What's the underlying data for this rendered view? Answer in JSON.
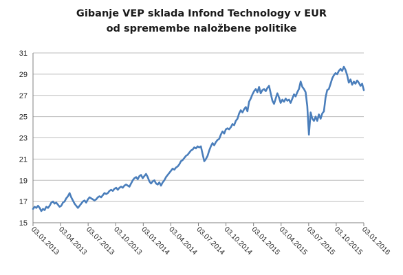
{
  "chart_data": {
    "type": "line",
    "title_lines": [
      "Gibanje VEP sklada Infond Technology v EUR",
      "od spremembe naložbene politike"
    ],
    "xlabel": "",
    "ylabel": "",
    "ylim": [
      15,
      31
    ],
    "y_ticks": [
      "15",
      "17",
      "19",
      "21",
      "23",
      "25",
      "27",
      "29",
      "31"
    ],
    "x_ticks": [
      "03.01.2013",
      "03.04.2013",
      "03.07.2013",
      "03.10.2013",
      "03.01.2014",
      "03.04.2014",
      "03.07.2014",
      "03.10.2014",
      "03.01.2015",
      "03.04.2015",
      "03.07.2015",
      "03.10.2015",
      "03.01.2016"
    ],
    "grid": true,
    "legend": "none",
    "line_color": "#4a7ebb",
    "series": [
      {
        "values": [
          16.3,
          16.5,
          16.4,
          16.6,
          16.4,
          16.1,
          16.3,
          16.2,
          16.5,
          16.4,
          16.6,
          16.9,
          17.0,
          16.8,
          16.9,
          16.7,
          16.5,
          16.6,
          16.9,
          17.0,
          17.3,
          17.5,
          17.8,
          17.4,
          17.1,
          16.8,
          16.6,
          16.4,
          16.6,
          16.8,
          17.0,
          17.1,
          16.9,
          17.2,
          17.4,
          17.3,
          17.2,
          17.1,
          17.2,
          17.4,
          17.5,
          17.4,
          17.6,
          17.8,
          17.7,
          17.8,
          18.0,
          18.1,
          18.0,
          18.2,
          18.3,
          18.1,
          18.3,
          18.4,
          18.3,
          18.5,
          18.6,
          18.5,
          18.4,
          18.7,
          19.0,
          19.2,
          19.3,
          19.1,
          19.4,
          19.5,
          19.2,
          19.4,
          19.6,
          19.3,
          18.9,
          18.7,
          18.9,
          19.0,
          18.7,
          18.6,
          18.8,
          18.5,
          18.8,
          19.0,
          19.3,
          19.5,
          19.7,
          19.9,
          20.1,
          20.0,
          20.2,
          20.3,
          20.5,
          20.8,
          20.9,
          21.1,
          21.3,
          21.4,
          21.6,
          21.8,
          21.9,
          22.1,
          22.0,
          22.2,
          22.1,
          22.2,
          21.5,
          20.8,
          21.0,
          21.3,
          21.8,
          22.2,
          22.5,
          22.3,
          22.6,
          22.8,
          22.9,
          23.3,
          23.6,
          23.4,
          23.8,
          23.9,
          23.8,
          24.0,
          24.3,
          24.2,
          24.6,
          24.8,
          25.3,
          25.6,
          25.4,
          25.7,
          25.9,
          25.5,
          26.4,
          26.7,
          27.1,
          27.4,
          27.6,
          27.3,
          27.8,
          27.2,
          27.5,
          27.6,
          27.4,
          27.7,
          27.9,
          27.2,
          26.5,
          26.2,
          26.7,
          27.2,
          26.8,
          26.3,
          26.6,
          26.4,
          26.7,
          26.5,
          26.6,
          26.3,
          26.7,
          27.1,
          26.9,
          27.3,
          27.6,
          28.3,
          27.8,
          27.6,
          27.3,
          26.0,
          23.3,
          25.4,
          24.8,
          24.6,
          25.0,
          24.6,
          25.2,
          24.8,
          25.3,
          25.5,
          26.8,
          27.5,
          27.6,
          28.1,
          28.6,
          28.9,
          29.1,
          29.0,
          29.3,
          29.5,
          29.3,
          29.7,
          29.4,
          28.9,
          28.2,
          28.5,
          28.0,
          28.3,
          28.1,
          28.4,
          28.2,
          27.9,
          28.1,
          27.5
        ]
      }
    ]
  }
}
